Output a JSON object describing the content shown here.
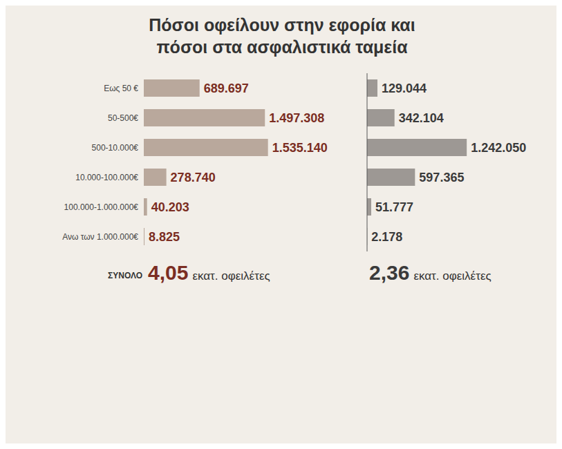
{
  "title": "Πόσοι οφείλουν στην εφορία και πόσοι στα ασφαλιστικά ταμεία",
  "total_label": "ΣΥΝΟΛΟ",
  "chart_data": [
    {
      "type": "bar",
      "orientation": "horizontal",
      "categories": [
        "Εως 50 €",
        "50-500€",
        "500-10.000€",
        "10.000-100.000€",
        "100.000-1.000.000€",
        "Ανω των 1.000.000€"
      ],
      "values": [
        689697,
        1497308,
        1535140,
        278740,
        40203,
        8825
      ],
      "value_labels": [
        "689.697",
        "1.497.308",
        "1.535.140",
        "278.740",
        "40.203",
        "8.825"
      ],
      "color": "#b9a89c",
      "data_labels": true,
      "tick_labels": "y",
      "xlim": [
        0,
        2700000
      ],
      "total": {
        "label": "4,05",
        "unit": "εκατ. οφειλέτες"
      }
    },
    {
      "type": "bar",
      "orientation": "horizontal",
      "categories": [
        "Εως 50 €",
        "50-500€",
        "500-10.000€",
        "10.000-100.000€",
        "100.000-1.000.000€",
        "Ανω των 1.000.000€"
      ],
      "values": [
        129044,
        342104,
        1242050,
        597365,
        51777,
        2178
      ],
      "value_labels": [
        "129.044",
        "342.104",
        "1.242.050",
        "597.365",
        "51.777",
        "2.178"
      ],
      "color": "#9d9894",
      "data_labels": true,
      "tick_labels": false,
      "xlim": [
        0,
        2300000
      ],
      "total": {
        "label": "2,36",
        "unit": "εκατ. οφειλέτες"
      }
    }
  ]
}
